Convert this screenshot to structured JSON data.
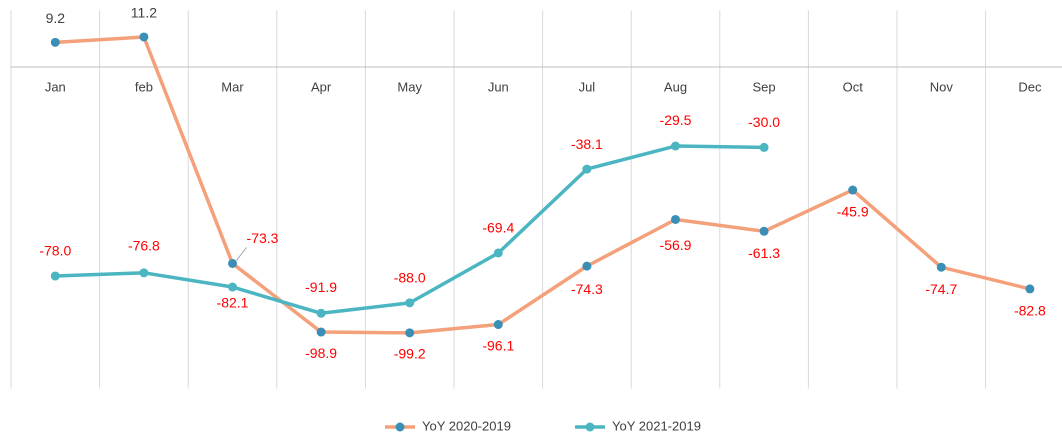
{
  "chart_data": {
    "type": "line",
    "categories": [
      "Jan",
      "feb",
      "Mar",
      "Apr",
      "May",
      "Jun",
      "Jul",
      "Aug",
      "Sep",
      "Oct",
      "Nov",
      "Dec"
    ],
    "series": [
      {
        "name": "YoY 2020-2019",
        "color": "#F4A07A",
        "marker_color": "#3A8FB7",
        "values": [
          9.2,
          11.2,
          -73.3,
          -98.9,
          -99.2,
          -96.1,
          -74.3,
          -56.9,
          -61.3,
          -45.9,
          -74.7,
          -82.8
        ],
        "value_labels": [
          "9.2",
          "11.2",
          "-73.3",
          "-98.9",
          "-99.2",
          "-96.1",
          "-74.3",
          "-56.9",
          "-61.3",
          "-45.9",
          "-74.7",
          "-82.8"
        ]
      },
      {
        "name": "YoY 2021-2019",
        "color": "#4BB5C1",
        "marker_color": "#4BB5C1",
        "values": [
          -78.0,
          -76.8,
          -82.1,
          -91.9,
          -88.0,
          -69.4,
          -38.1,
          -29.5,
          -30.0,
          null,
          null,
          null
        ],
        "value_labels": [
          "-78.0",
          "-76.8",
          "-82.1",
          "-91.9",
          "-88.0",
          "-69.4",
          "-38.1",
          "-29.5",
          "-30.0",
          null,
          null,
          null
        ]
      }
    ],
    "ylim": [
      -120,
      20
    ],
    "grid": true,
    "legend": "bottom"
  }
}
